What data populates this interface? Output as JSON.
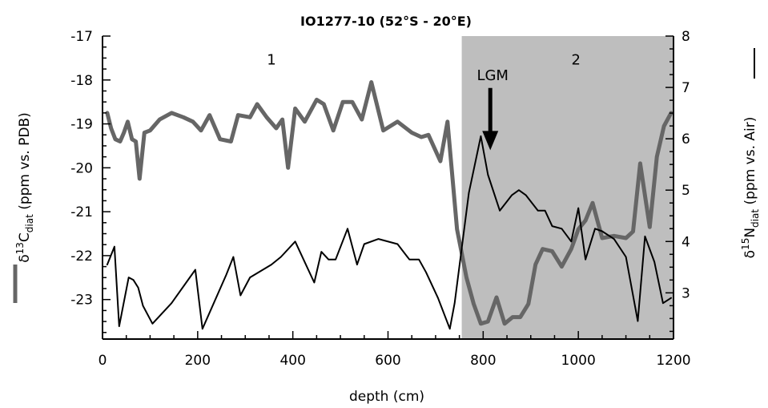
{
  "chart_data": {
    "type": "line",
    "title": "IO1277-10 (52°S - 20°E)",
    "xlabel": "depth (cm)",
    "ylabel_left": [
      "δ",
      "13",
      "C",
      "diat",
      " (ppm vs. PDB)"
    ],
    "ylabel_right": [
      "δ",
      "15",
      "N",
      "diat",
      " (ppm vs. Air)"
    ],
    "xlim": [
      0,
      1200
    ],
    "ylim_left": [
      -23.9,
      -17
    ],
    "ylim_right": [
      2.1,
      8
    ],
    "x_ticks": [
      0,
      200,
      400,
      600,
      800,
      1000,
      1200
    ],
    "y_left_ticks": [
      -17,
      -18,
      -19,
      -20,
      -21,
      -22,
      -23
    ],
    "y_right_ticks": [
      8,
      7,
      6,
      5,
      4,
      3
    ],
    "shaded_region": {
      "x_start": 755,
      "x_end": 1200,
      "color": "#bebebe"
    },
    "annotations": [
      {
        "text": "1",
        "x": 355,
        "y_left": -17.65
      },
      {
        "text": "2",
        "x": 995,
        "y_left": -17.65
      },
      {
        "text": "LGM",
        "x": 820,
        "y_left": -18.0,
        "arrow_to_y_left": -19.6
      }
    ],
    "series": [
      {
        "axis": "left",
        "color": "#666666",
        "points": [
          [
            10,
            -18.75
          ],
          [
            18,
            -19.1
          ],
          [
            27,
            -19.35
          ],
          [
            37,
            -19.4
          ],
          [
            45,
            -19.2
          ],
          [
            53,
            -18.95
          ],
          [
            62,
            -19.35
          ],
          [
            70,
            -19.4
          ],
          [
            78,
            -20.25
          ],
          [
            88,
            -19.2
          ],
          [
            100,
            -19.15
          ],
          [
            120,
            -18.9
          ],
          [
            145,
            -18.75
          ],
          [
            170,
            -18.85
          ],
          [
            190,
            -18.95
          ],
          [
            207,
            -19.15
          ],
          [
            225,
            -18.8
          ],
          [
            247,
            -19.35
          ],
          [
            270,
            -19.4
          ],
          [
            285,
            -18.8
          ],
          [
            310,
            -18.85
          ],
          [
            325,
            -18.55
          ],
          [
            345,
            -18.85
          ],
          [
            365,
            -19.1
          ],
          [
            378,
            -18.9
          ],
          [
            390,
            -20.0
          ],
          [
            405,
            -18.65
          ],
          [
            425,
            -18.95
          ],
          [
            450,
            -18.45
          ],
          [
            465,
            -18.55
          ],
          [
            485,
            -19.15
          ],
          [
            505,
            -18.5
          ],
          [
            525,
            -18.5
          ],
          [
            545,
            -18.9
          ],
          [
            565,
            -18.05
          ],
          [
            590,
            -19.15
          ],
          [
            620,
            -18.95
          ],
          [
            650,
            -19.2
          ],
          [
            670,
            -19.3
          ],
          [
            685,
            -19.25
          ],
          [
            710,
            -19.85
          ],
          [
            725,
            -18.95
          ],
          [
            745,
            -21.4
          ],
          [
            765,
            -22.5
          ],
          [
            780,
            -23.1
          ],
          [
            795,
            -23.55
          ],
          [
            810,
            -23.5
          ],
          [
            828,
            -22.95
          ],
          [
            845,
            -23.55
          ],
          [
            862,
            -23.4
          ],
          [
            878,
            -23.4
          ],
          [
            895,
            -23.1
          ],
          [
            910,
            -22.2
          ],
          [
            925,
            -21.85
          ],
          [
            945,
            -21.9
          ],
          [
            965,
            -22.25
          ],
          [
            985,
            -21.85
          ],
          [
            1000,
            -21.4
          ],
          [
            1015,
            -21.2
          ],
          [
            1030,
            -20.8
          ],
          [
            1050,
            -21.6
          ],
          [
            1075,
            -21.55
          ],
          [
            1100,
            -21.6
          ],
          [
            1115,
            -21.45
          ],
          [
            1130,
            -19.9
          ],
          [
            1150,
            -21.35
          ],
          [
            1165,
            -19.75
          ],
          [
            1180,
            -19.05
          ],
          [
            1195,
            -18.75
          ]
        ]
      },
      {
        "axis": "right",
        "color": "#000000",
        "points": [
          [
            10,
            3.55
          ],
          [
            25,
            3.9
          ],
          [
            35,
            2.35
          ],
          [
            55,
            3.3
          ],
          [
            65,
            3.25
          ],
          [
            75,
            3.1
          ],
          [
            85,
            2.75
          ],
          [
            105,
            2.4
          ],
          [
            145,
            2.8
          ],
          [
            195,
            3.45
          ],
          [
            210,
            2.3
          ],
          [
            260,
            3.35
          ],
          [
            275,
            3.7
          ],
          [
            290,
            2.95
          ],
          [
            310,
            3.3
          ],
          [
            355,
            3.55
          ],
          [
            375,
            3.7
          ],
          [
            405,
            4.0
          ],
          [
            445,
            3.2
          ],
          [
            460,
            3.8
          ],
          [
            475,
            3.65
          ],
          [
            490,
            3.65
          ],
          [
            515,
            4.25
          ],
          [
            535,
            3.55
          ],
          [
            550,
            3.95
          ],
          [
            580,
            4.05
          ],
          [
            620,
            3.95
          ],
          [
            645,
            3.65
          ],
          [
            665,
            3.65
          ],
          [
            680,
            3.4
          ],
          [
            705,
            2.9
          ],
          [
            730,
            2.3
          ],
          [
            740,
            2.8
          ],
          [
            770,
            4.95
          ],
          [
            795,
            6.05
          ],
          [
            810,
            5.3
          ],
          [
            835,
            4.6
          ],
          [
            860,
            4.9
          ],
          [
            875,
            5.0
          ],
          [
            890,
            4.9
          ],
          [
            915,
            4.6
          ],
          [
            930,
            4.6
          ],
          [
            945,
            4.3
          ],
          [
            965,
            4.25
          ],
          [
            985,
            4.0
          ],
          [
            1000,
            4.65
          ],
          [
            1015,
            3.65
          ],
          [
            1035,
            4.25
          ],
          [
            1050,
            4.2
          ],
          [
            1075,
            4.05
          ],
          [
            1100,
            3.7
          ],
          [
            1125,
            2.45
          ],
          [
            1140,
            4.1
          ],
          [
            1160,
            3.6
          ],
          [
            1178,
            2.8
          ],
          [
            1195,
            2.9
          ]
        ]
      }
    ]
  }
}
